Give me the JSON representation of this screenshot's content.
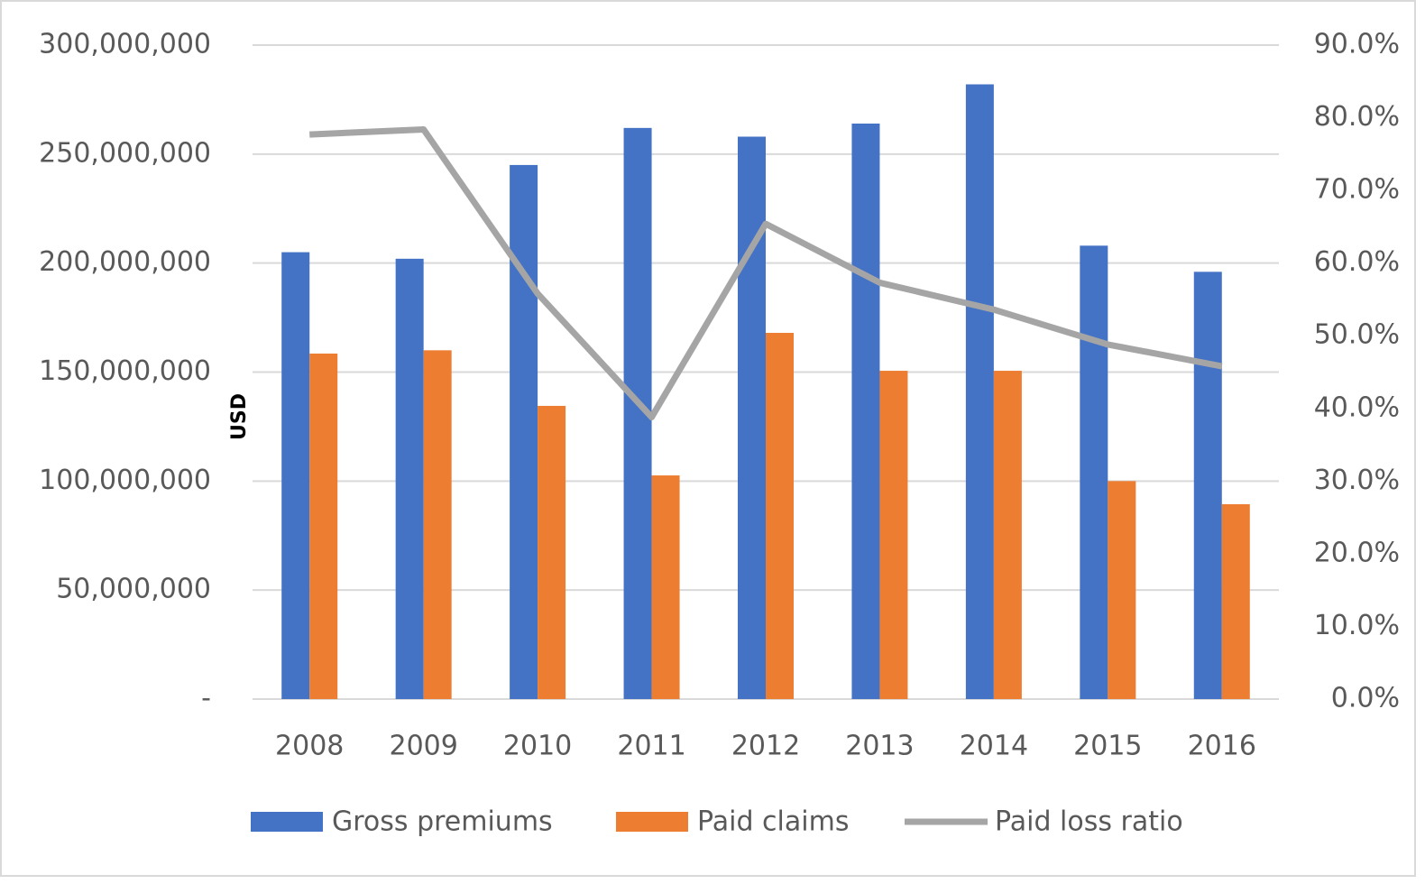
{
  "chart_data": {
    "type": "bar",
    "y_label": "USD",
    "categories": [
      "2008",
      "2009",
      "2010",
      "2011",
      "2012",
      "2013",
      "2014",
      "2015",
      "2016"
    ],
    "series": [
      {
        "name": "Gross premiums",
        "type": "bar",
        "color": "#4472c4",
        "values": [
          205000000,
          202000000,
          245000000,
          262000000,
          258000000,
          264000000,
          282000000,
          208000000,
          196000000
        ]
      },
      {
        "name": "Paid claims",
        "type": "bar",
        "color": "#ed7d31",
        "values": [
          158500000,
          160000000,
          134500000,
          102600000,
          168000000,
          150600000,
          150600000,
          100000000,
          89400000
        ]
      },
      {
        "name": "Paid loss ratio",
        "type": "line",
        "axis": "y2",
        "color": "#a5a5a5",
        "values": [
          77.7,
          78.4,
          55.8,
          38.8,
          65.4,
          57.3,
          53.6,
          48.8,
          45.8
        ]
      }
    ],
    "ylim": [
      0,
      300000000
    ],
    "yticks": [
      {
        "value": 0,
        "label": "-"
      },
      {
        "value": 50000000,
        "label": "50,000,000"
      },
      {
        "value": 100000000,
        "label": "100,000,000"
      },
      {
        "value": 150000000,
        "label": "150,000,000"
      },
      {
        "value": 200000000,
        "label": "200,000,000"
      },
      {
        "value": 250000000,
        "label": "250,000,000"
      },
      {
        "value": 300000000,
        "label": "300,000,000"
      }
    ],
    "y2lim": [
      0,
      90
    ],
    "y2ticks": [
      {
        "value": 0,
        "label": "0.0%"
      },
      {
        "value": 10,
        "label": "10.0%"
      },
      {
        "value": 20,
        "label": "20.0%"
      },
      {
        "value": 30,
        "label": "30.0%"
      },
      {
        "value": 40,
        "label": "40.0%"
      },
      {
        "value": 50,
        "label": "50.0%"
      },
      {
        "value": 60,
        "label": "60.0%"
      },
      {
        "value": 70,
        "label": "70.0%"
      },
      {
        "value": 80,
        "label": "80.0%"
      },
      {
        "value": 90,
        "label": "90.0%"
      }
    ],
    "grid": true,
    "legend": "bottom"
  }
}
